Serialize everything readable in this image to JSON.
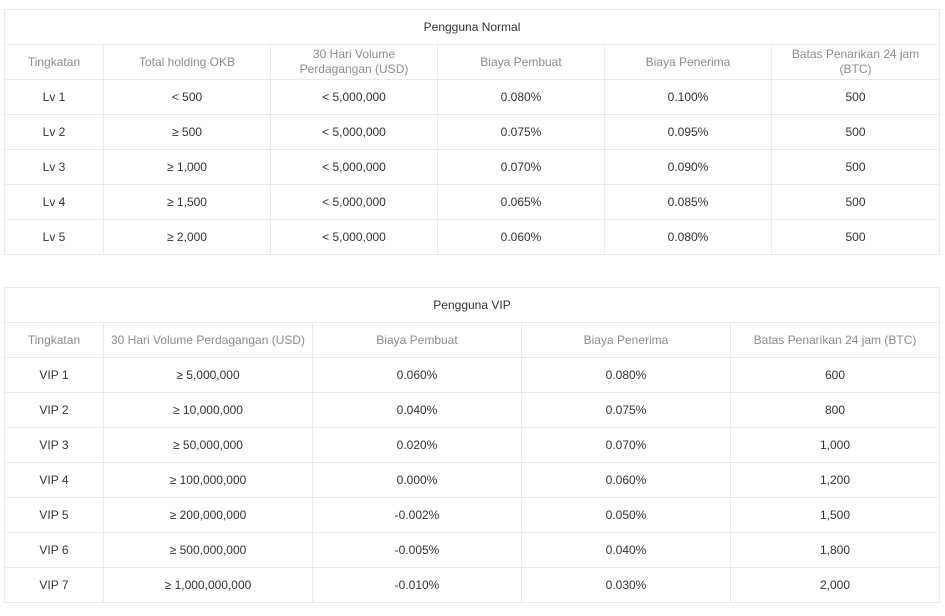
{
  "normal": {
    "title": "Pengguna Normal",
    "headers": [
      "Tingkatan",
      "Total holding OKB",
      "30 Hari Volume Perdagangan (USD)",
      "Biaya Pembuat",
      "Biaya Penerima",
      "Batas Penarikan 24 jam (BTC)"
    ],
    "rows": [
      [
        "Lv 1",
        "< 500",
        "< 5,000,000",
        "0.080%",
        "0.100%",
        "500"
      ],
      [
        "Lv 2",
        "≥ 500",
        "< 5,000,000",
        "0.075%",
        "0.095%",
        "500"
      ],
      [
        "Lv 3",
        "≥ 1,000",
        "< 5,000,000",
        "0.070%",
        "0.090%",
        "500"
      ],
      [
        "Lv 4",
        "≥ 1,500",
        "< 5,000,000",
        "0.065%",
        "0.085%",
        "500"
      ],
      [
        "Lv 5",
        "≥ 2,000",
        "< 5,000,000",
        "0.060%",
        "0.080%",
        "500"
      ]
    ]
  },
  "vip": {
    "title": "Pengguna VIP",
    "headers": [
      "Tingkatan",
      "30 Hari Volume Perdagangan (USD)",
      "Biaya Pembuat",
      "Biaya Penerima",
      "Batas Penarikan 24 jam (BTC)"
    ],
    "rows": [
      [
        "VIP 1",
        "≥ 5,000,000",
        "0.060%",
        "0.080%",
        "600"
      ],
      [
        "VIP 2",
        "≥ 10,000,000",
        "0.040%",
        "0.075%",
        "800"
      ],
      [
        "VIP 3",
        "≥ 50,000,000",
        "0.020%",
        "0.070%",
        "1,000"
      ],
      [
        "VIP 4",
        "≥ 100,000,000",
        "0.000%",
        "0.060%",
        "1,200"
      ],
      [
        "VIP 5",
        "≥ 200,000,000",
        "-0.002%",
        "0.050%",
        "1,500"
      ],
      [
        "VIP 6",
        "≥ 500,000,000",
        "-0.005%",
        "0.040%",
        "1,800"
      ],
      [
        "VIP 7",
        "≥ 1,000,000,000",
        "-0.010%",
        "0.030%",
        "2,000"
      ]
    ]
  }
}
